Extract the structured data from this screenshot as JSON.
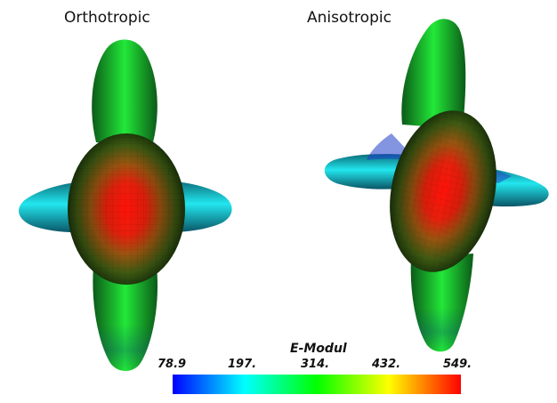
{
  "titles": {
    "left": "Orthotropic",
    "right": "Anisotropic"
  },
  "legend": {
    "title": "E-Modul",
    "ticks": [
      "78.9",
      "197.",
      "314.",
      "432.",
      "549."
    ],
    "min": 78.9,
    "max": 549,
    "colormap": [
      "#0000ff",
      "#00ffff",
      "#00ff00",
      "#ffff00",
      "#ff0000"
    ]
  },
  "colors": {
    "high": "#ff1a10",
    "mid": "#18d92a",
    "low_cyan": "#19d9e0",
    "low_blue": "#1e40d8"
  }
}
